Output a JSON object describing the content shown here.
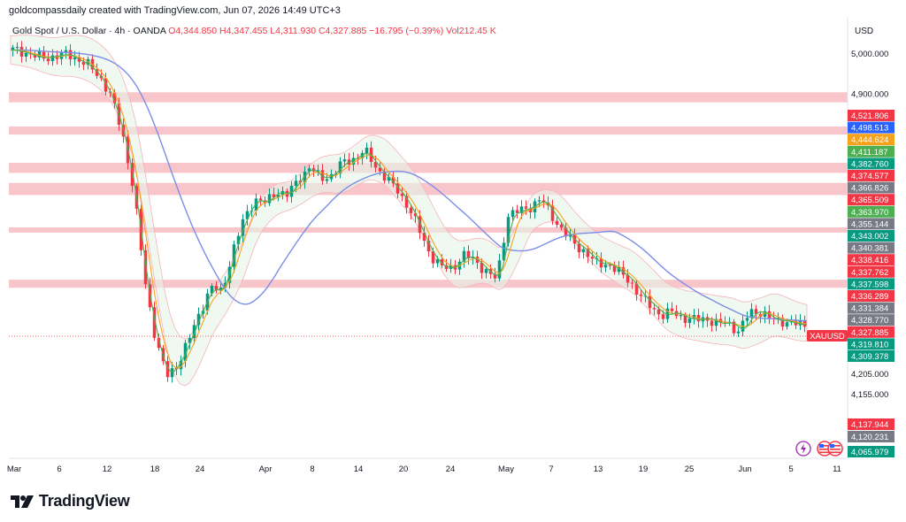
{
  "header": {
    "credit": "goldcompassdaily created with TradingView.com, Jun 07, 2026 14:49 UTC+3"
  },
  "legend": {
    "symbol": "Gold Spot / U.S. Dollar · 4h · OANDA",
    "open": "O4,344.850",
    "high": "H4,347.455",
    "low": "L4,311.930",
    "close": "C4,327.885",
    "change": "−16.795 (−0.39%)",
    "volume": "Vol212.45 K"
  },
  "currency": "USD",
  "brand": {
    "name": "TradingView",
    "logo_icon": "tradingview-logo-icon"
  },
  "ticker_tag": "XAUUSD",
  "colors": {
    "up": "#089981",
    "down": "#f23645",
    "ma_blue": "#7b8ee6",
    "ma_orange": "#f7a21b",
    "ma_green": "#4caf50",
    "zone": "#f6b3b8"
  },
  "chart_data": {
    "type": "candlestick",
    "x_tick_labels": [
      "Mar",
      "6",
      "12",
      "18",
      "24",
      "Apr",
      "8",
      "14",
      "20",
      "24",
      "May",
      "7",
      "13",
      "19",
      "25",
      "Jun",
      "5",
      "11"
    ],
    "y_tick_labels": [
      5000,
      4900,
      4205,
      4155
    ],
    "price_levels": [
      {
        "value": "4,521.806",
        "color": "#f23645"
      },
      {
        "value": "4,498.513",
        "color": "#2962ff"
      },
      {
        "value": "4,444.624",
        "color": "#f7a21b"
      },
      {
        "value": "4,411.187",
        "color": "#4caf50"
      },
      {
        "value": "4,382.760",
        "color": "#089981"
      },
      {
        "value": "4,374.577",
        "color": "#f23645"
      },
      {
        "value": "4,366.826",
        "color": "#787b86"
      },
      {
        "value": "4,365.509",
        "color": "#f23645"
      },
      {
        "value": "4,363.970",
        "color": "#4caf50"
      },
      {
        "value": "4,355.144",
        "color": "#787b86"
      },
      {
        "value": "4,343.002",
        "color": "#089981"
      },
      {
        "value": "4,340.381",
        "color": "#787b86"
      },
      {
        "value": "4,338.416",
        "color": "#f23645"
      },
      {
        "value": "4,337.762",
        "color": "#f23645"
      },
      {
        "value": "4,337.598",
        "color": "#089981"
      },
      {
        "value": "4,336.289",
        "color": "#f23645"
      },
      {
        "value": "4,331.384",
        "color": "#787b86"
      },
      {
        "value": "4,328.770",
        "color": "#787b86"
      },
      {
        "value": "4,327.885",
        "color": "#f23645"
      },
      {
        "value": "4,319.810",
        "color": "#089981"
      },
      {
        "value": "4,309.378",
        "color": "#089981"
      },
      {
        "value": "4,137.944",
        "color": "#f23645"
      },
      {
        "value": "4,120.231",
        "color": "#787b86"
      },
      {
        "value": "4,065.979",
        "color": "#089981"
      }
    ],
    "close_path": [
      5010,
      5005,
      4995,
      4990,
      4995,
      5000,
      4985,
      4970,
      4940,
      4890,
      4800,
      4660,
      4440,
      4290,
      4200,
      4230,
      4290,
      4360,
      4420,
      4410,
      4510,
      4590,
      4640,
      4630,
      4660,
      4650,
      4690,
      4720,
      4690,
      4700,
      4730,
      4740,
      4760,
      4720,
      4690,
      4660,
      4620,
      4560,
      4500,
      4470,
      4470,
      4500,
      4490,
      4460,
      4440,
      4600,
      4610,
      4620,
      4640,
      4600,
      4560,
      4530,
      4510,
      4480,
      4480,
      4460,
      4440,
      4400,
      4375,
      4350,
      4360,
      4345,
      4340,
      4345,
      4330,
      4335,
      4310,
      4360,
      4360,
      4340,
      4338,
      4330,
      4328
    ],
    "zones": [
      {
        "low": 4880,
        "high": 4905
      },
      {
        "low": 4800,
        "high": 4820
      },
      {
        "low": 4705,
        "high": 4730
      },
      {
        "low": 4650,
        "high": 4680
      },
      {
        "low": 4560,
        "high": 4570
      },
      {
        "low": 4420,
        "high": 4440
      }
    ]
  }
}
